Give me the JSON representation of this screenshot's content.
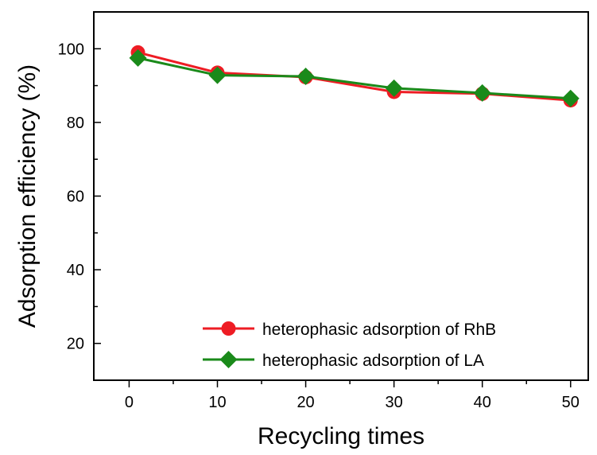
{
  "chart_data": {
    "type": "line",
    "title": "",
    "xlabel": "Recycling times",
    "ylabel": "Adsorption efficiency (%)",
    "xlim": [
      -4,
      52
    ],
    "ylim": [
      10,
      110
    ],
    "xticks": [
      "0",
      "10",
      "20",
      "30",
      "40",
      "50"
    ],
    "yticks": [
      "20",
      "40",
      "60",
      "80",
      "100"
    ],
    "x": [
      1,
      10,
      20,
      30,
      40,
      50
    ],
    "series": [
      {
        "name": "heterophasic adsorption of RhB",
        "color": "#ee1c24",
        "marker": "circle",
        "values": [
          99.0,
          93.5,
          92.3,
          88.3,
          87.8,
          86.0
        ]
      },
      {
        "name": "heterophasic adsorption of LA",
        "color": "#1a8a1a",
        "marker": "diamond",
        "values": [
          97.5,
          92.8,
          92.5,
          89.3,
          88.0,
          86.5
        ]
      }
    ],
    "legend_position": "bottom-right",
    "grid": false
  }
}
